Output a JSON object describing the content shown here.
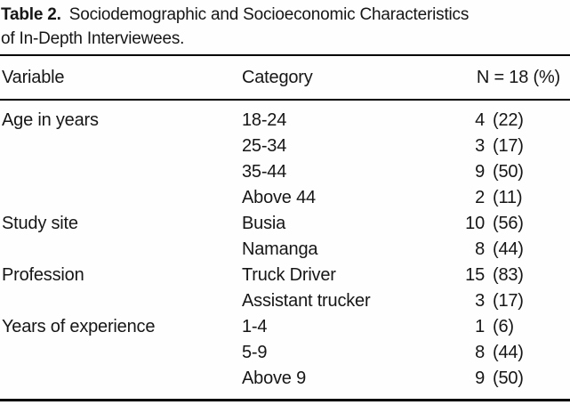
{
  "table": {
    "caption": {
      "label": "Table 2.",
      "line1": "Sociodemographic and Socioeconomic Characteristics",
      "line2": "of In-Depth Interviewees."
    },
    "columns": {
      "variable": "Variable",
      "category": "Category",
      "n": "N = 18 (%)"
    },
    "rows": [
      {
        "variable": "Age in years",
        "category": "18-24",
        "n": "4",
        "pct": "(22)"
      },
      {
        "variable": "",
        "category": "25-34",
        "n": "3",
        "pct": "(17)"
      },
      {
        "variable": "",
        "category": "35-44",
        "n": "9",
        "pct": "(50)"
      },
      {
        "variable": "",
        "category": "Above 44",
        "n": "2",
        "pct": "(11)"
      },
      {
        "variable": "Study site",
        "category": "Busia",
        "n": "10",
        "pct": "(56)"
      },
      {
        "variable": "",
        "category": "Namanga",
        "n": "8",
        "pct": "(44)"
      },
      {
        "variable": "Profession",
        "category": "Truck Driver",
        "n": "15",
        "pct": "(83)"
      },
      {
        "variable": "",
        "category": "Assistant trucker",
        "n": "3",
        "pct": "(17)"
      },
      {
        "variable": "Years of experience",
        "category": "1-4",
        "n": "1",
        "pct": "(6)"
      },
      {
        "variable": "",
        "category": "5-9",
        "n": "8",
        "pct": "(44)"
      },
      {
        "variable": "",
        "category": "Above 9",
        "n": "9",
        "pct": "(50)"
      }
    ],
    "colors": {
      "text": "#161616",
      "rule": "#000000",
      "background": "#fefefe"
    }
  }
}
